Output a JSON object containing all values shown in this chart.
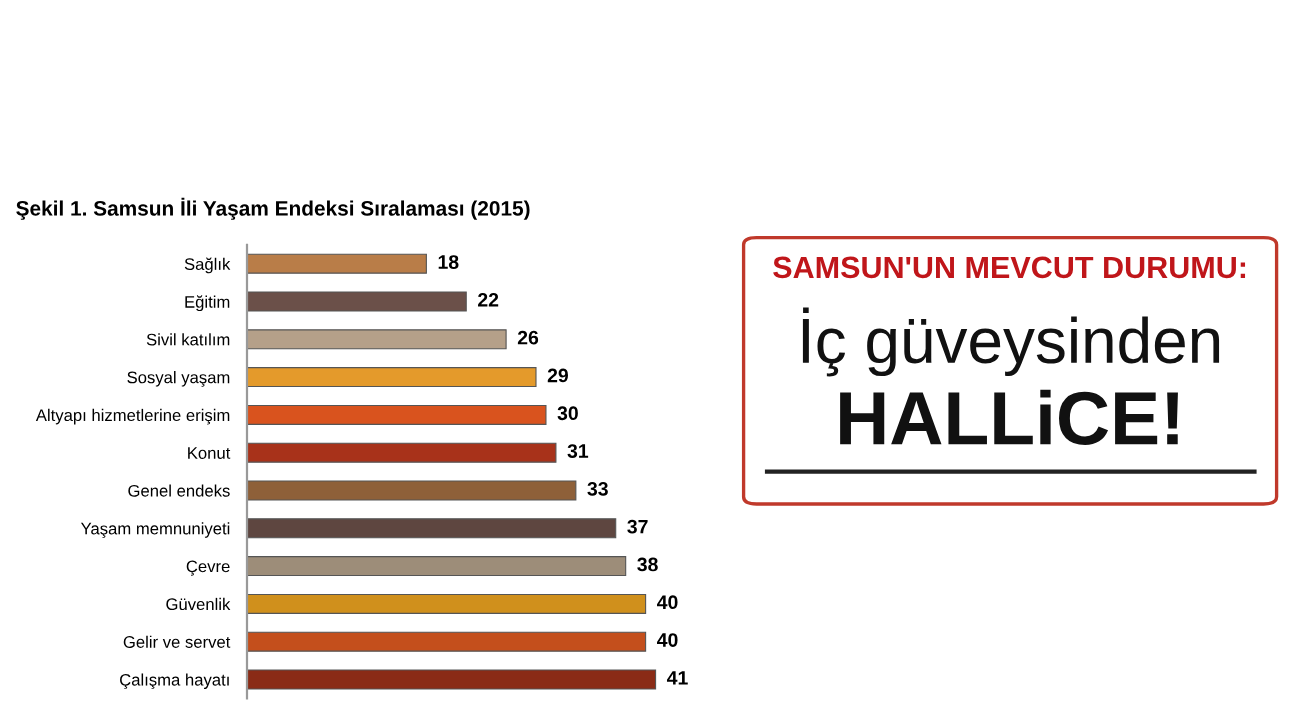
{
  "chart_data": {
    "type": "bar",
    "orientation": "horizontal",
    "title": "Şekil 1. Samsun İli Yaşam Endeksi Sıralaması (2015)",
    "categories": [
      "Sağlık",
      "Eğitim",
      "Sivil katılım",
      "Sosyal yaşam",
      "Altyapı hizmetlerine erişim",
      "Konut",
      "Genel endeks",
      "Yaşam memnuniyeti",
      "Çevre",
      "Güvenlik",
      "Gelir ve servet",
      "Çalışma hayatı"
    ],
    "values": [
      18,
      22,
      26,
      29,
      30,
      31,
      33,
      37,
      38,
      40,
      40,
      41
    ],
    "colors": [
      "#b97d48",
      "#6b5049",
      "#b5a089",
      "#e49a2b",
      "#d9531e",
      "#a8321a",
      "#8e6039",
      "#5e4640",
      "#9d8d79",
      "#d0901c",
      "#c44f1c",
      "#8a2b16"
    ],
    "data_labels": true,
    "grid": false,
    "legend": false,
    "annotations": [
      "SAMSUN'UN MEVCUT DURUMU:",
      "İç güveysinden",
      "HALLiCE!"
    ]
  }
}
